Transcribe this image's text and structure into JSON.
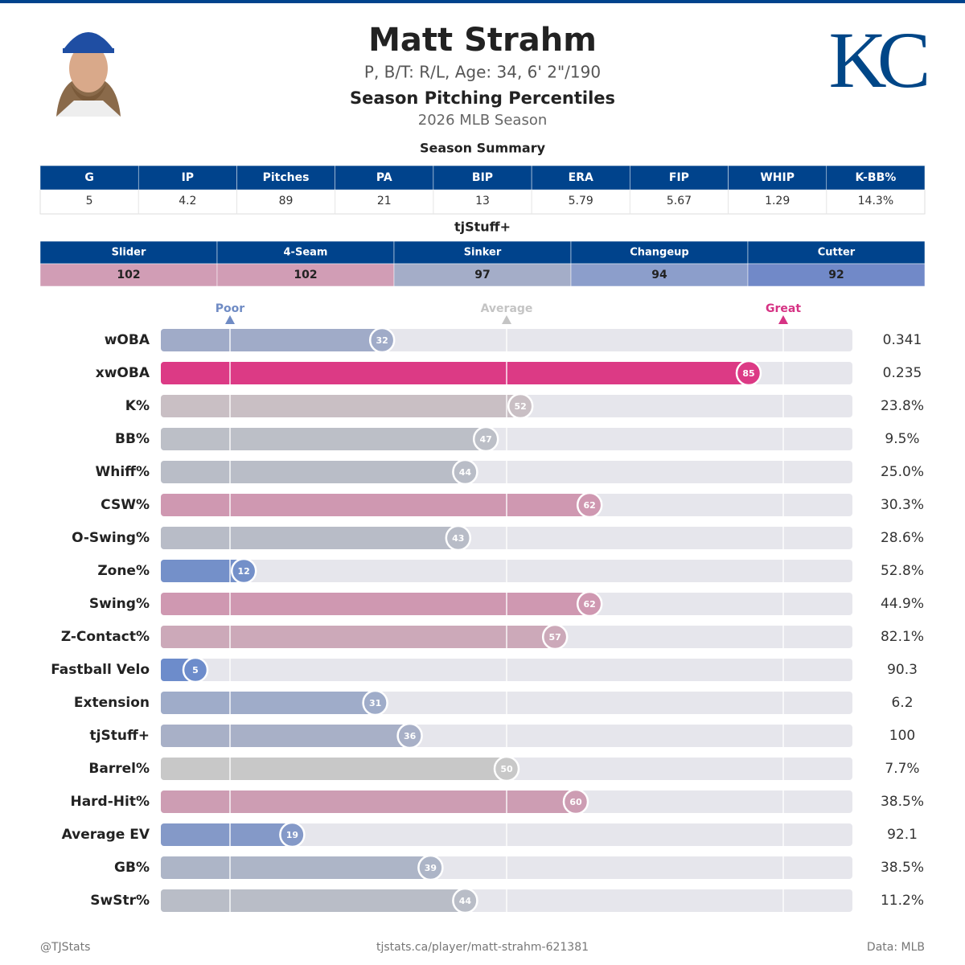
{
  "header": {
    "name": "Matt Strahm",
    "bio": "P, B/T: R/L, Age: 34, 6' 2\"/190",
    "subtitle": "Season Pitching Percentiles",
    "season": "2026 MLB Season",
    "logo": "KC"
  },
  "summary": {
    "title": "Season Summary",
    "headers": [
      "G",
      "IP",
      "Pitches",
      "PA",
      "BIP",
      "ERA",
      "FIP",
      "WHIP",
      "K-BB%"
    ],
    "values": [
      "5",
      "4.2",
      "89",
      "21",
      "13",
      "5.79",
      "5.67",
      "1.29",
      "14.3%"
    ]
  },
  "tjstuff": {
    "title": "tjStuff+",
    "pitches": [
      {
        "name": "Slider",
        "value": 102,
        "color": "#d19db5"
      },
      {
        "name": "4-Seam",
        "value": 102,
        "color": "#d19db5"
      },
      {
        "name": "Sinker",
        "value": 97,
        "color": "#a4adc8"
      },
      {
        "name": "Changeup",
        "value": 94,
        "color": "#8c9ecb"
      },
      {
        "name": "Cutter",
        "value": 92,
        "color": "#7189c8"
      }
    ]
  },
  "chart_data": {
    "type": "bar",
    "orientation": "horizontal",
    "xlim": [
      0,
      100
    ],
    "xticks": [
      {
        "value": 10,
        "label": "Poor"
      },
      {
        "value": 50,
        "label": "Average"
      },
      {
        "value": 90,
        "label": "Great"
      }
    ],
    "xtick_colors": [
      "#6f8bc4",
      "#c4c4c4",
      "#d63384"
    ],
    "categories": [
      "wOBA",
      "xwOBA",
      "K%",
      "BB%",
      "Whiff%",
      "CSW%",
      "O-Swing%",
      "Zone%",
      "Swing%",
      "Z-Contact%",
      "Fastball Velo",
      "Extension",
      "tjStuff+",
      "Barrel%",
      "Hard-Hit%",
      "Average EV",
      "GB%",
      "SwStr%"
    ],
    "values": [
      32,
      85,
      52,
      47,
      44,
      62,
      43,
      12,
      62,
      57,
      5,
      31,
      36,
      50,
      60,
      19,
      39,
      44
    ],
    "colors": [
      "#a0abc8",
      "#dc3a85",
      "#c9bfc4",
      "#bcbfc7",
      "#b9bdc7",
      "#cf98b1",
      "#b8bcc7",
      "#7490c9",
      "#cf98b1",
      "#cca9b9",
      "#6d8ccb",
      "#9facc9",
      "#a8b0c7",
      "#c8c8c8",
      "#cd9db3",
      "#8499c8",
      "#adb5c7",
      "#b9bdc7"
    ],
    "metrics": [
      "0.341",
      "0.235",
      "23.8%",
      "9.5%",
      "25.0%",
      "30.3%",
      "28.6%",
      "52.8%",
      "44.9%",
      "82.1%",
      "90.3",
      "6.2",
      "100",
      "7.7%",
      "38.5%",
      "92.1",
      "38.5%",
      "11.2%"
    ]
  },
  "footer": {
    "left": "@TJStats",
    "center": "tjstats.ca/player/matt-strahm-621381",
    "right": "Data: MLB"
  }
}
